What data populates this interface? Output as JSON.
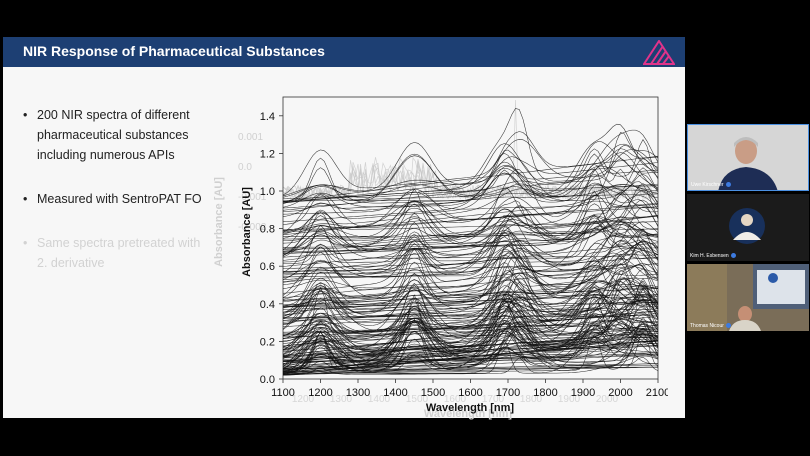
{
  "slide": {
    "title": "NIR Response of Pharmaceutical Substances",
    "bullets": [
      {
        "text": "200 NIR spectra of different pharmaceutical substances including numerous APIs",
        "faded": false
      },
      {
        "text": "Measured with SentroPAT FO",
        "faded": false
      },
      {
        "text": "Same spectra pretreated with 2. derivative",
        "faded": true
      }
    ]
  },
  "chart_data": {
    "type": "line",
    "title": "",
    "xlabel": "Wavelength [nm]",
    "ylabel": "Absorbance [AU]",
    "xlim": [
      1100,
      2100
    ],
    "ylim": [
      0,
      1.5
    ],
    "x_ticks": [
      1100,
      1200,
      1300,
      1400,
      1500,
      1600,
      1700,
      1800,
      1900,
      2000,
      2100
    ],
    "y_ticks": [
      "0.0",
      "0.2",
      "0.4",
      "0.6",
      "0.8",
      "1.0",
      "1.2",
      "1.4"
    ],
    "series_count": 200,
    "line_color": "#111111",
    "background_overlay": {
      "ylabel": "Absorbance [AU]",
      "xlabel": "Wavelength [nm]",
      "y_ticks": [
        "0.001",
        "0.0",
        "-0.001",
        "-0.002"
      ],
      "x_ticks": [
        "1200",
        "1300",
        "1400",
        "1500",
        "1600",
        "1700",
        "1800",
        "1900",
        "2000"
      ],
      "color": "#c8c8c8"
    }
  },
  "participants": [
    {
      "name": "Uwe Kirschner"
    },
    {
      "name": "Kim H. Esbensen"
    },
    {
      "name": "Thomas Nicour"
    }
  ],
  "colors": {
    "header": "#1d3f73",
    "logo": "#e0338a",
    "active_speaker_border": "#4a90e2"
  }
}
